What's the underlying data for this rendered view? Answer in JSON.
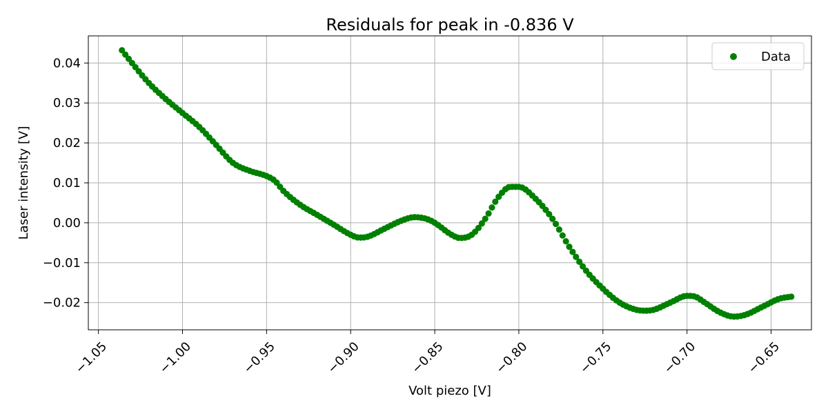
{
  "chart_data": {
    "type": "scatter",
    "title": "Residuals for peak in -0.836 V",
    "xlabel": "Volt piezo [V]",
    "ylabel": "Laser intensity [V]",
    "xlim": [
      -1.056,
      -0.626
    ],
    "ylim": [
      -0.0268,
      0.0468
    ],
    "xticks": [
      -1.05,
      -1.0,
      -0.95,
      -0.9,
      -0.85,
      -0.8,
      -0.75,
      -0.7,
      -0.65
    ],
    "xtick_labels": [
      "−1.05",
      "−1.00",
      "−0.95",
      "−0.90",
      "−0.85",
      "−0.80",
      "−0.75",
      "−0.70",
      "−0.65"
    ],
    "yticks": [
      0.04,
      0.03,
      0.02,
      0.01,
      0.0,
      -0.01,
      -0.02
    ],
    "ytick_labels": [
      "0.04",
      "0.03",
      "0.02",
      "0.01",
      "0.00",
      "−0.01",
      "−0.02"
    ],
    "grid": true,
    "legend_position": "top-right",
    "series": [
      {
        "name": "Data",
        "color": "#008000",
        "marker": "circle",
        "points": [
          [
            -1.036,
            0.0432
          ],
          [
            -1.03,
            0.04
          ],
          [
            -1.02,
            0.035
          ],
          [
            -1.01,
            0.031
          ],
          [
            -1.0,
            0.0275
          ],
          [
            -0.99,
            0.024
          ],
          [
            -0.98,
            0.0195
          ],
          [
            -0.97,
            0.015
          ],
          [
            -0.96,
            0.013
          ],
          [
            -0.95,
            0.0117
          ],
          [
            -0.945,
            0.0105
          ],
          [
            -0.94,
            0.008
          ],
          [
            -0.93,
            0.0045
          ],
          [
            -0.92,
            0.002
          ],
          [
            -0.91,
            -0.0005
          ],
          [
            -0.9,
            -0.003
          ],
          [
            -0.895,
            -0.0037
          ],
          [
            -0.89,
            -0.0035
          ],
          [
            -0.88,
            -0.0015
          ],
          [
            -0.87,
            0.0005
          ],
          [
            -0.862,
            0.0014
          ],
          [
            -0.855,
            0.001
          ],
          [
            -0.85,
            0.0
          ],
          [
            -0.84,
            -0.003
          ],
          [
            -0.835,
            -0.0038
          ],
          [
            -0.828,
            -0.003
          ],
          [
            -0.82,
            0.001
          ],
          [
            -0.812,
            0.0065
          ],
          [
            -0.805,
            0.009
          ],
          [
            -0.8,
            0.009
          ],
          [
            -0.79,
            0.006
          ],
          [
            -0.78,
            0.001
          ],
          [
            -0.77,
            -0.006
          ],
          [
            -0.76,
            -0.012
          ],
          [
            -0.75,
            -0.0165
          ],
          [
            -0.74,
            -0.02
          ],
          [
            -0.73,
            -0.0218
          ],
          [
            -0.725,
            -0.022
          ],
          [
            -0.72,
            -0.0218
          ],
          [
            -0.71,
            -0.02
          ],
          [
            -0.7,
            -0.0183
          ],
          [
            -0.695,
            -0.0185
          ],
          [
            -0.69,
            -0.0198
          ],
          [
            -0.68,
            -0.0225
          ],
          [
            -0.672,
            -0.0235
          ],
          [
            -0.665,
            -0.023
          ],
          [
            -0.655,
            -0.021
          ],
          [
            -0.645,
            -0.019
          ],
          [
            -0.638,
            -0.0185
          ]
        ]
      }
    ]
  }
}
